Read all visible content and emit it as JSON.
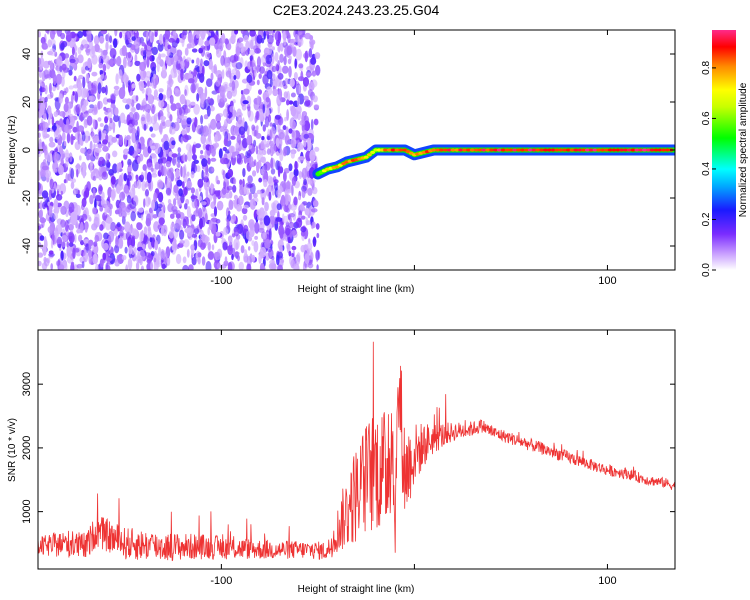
{
  "title": "C2E3.2024.243.23.25.G04",
  "chart_data": [
    {
      "type": "heatmap",
      "xlabel": "Height of straight line (km)",
      "ylabel": "Frequency (Hz)",
      "xlim": [
        -195,
        135
      ],
      "ylim": [
        -50,
        50
      ],
      "xticks": [
        -100,
        0,
        100
      ],
      "xtick_labels": [
        "-100",
        "",
        "100"
      ],
      "yticks": [
        -40,
        -20,
        0,
        20,
        40
      ],
      "colorbar": {
        "label": "Normalized spectral amplitude",
        "range": [
          0,
          0.95
        ],
        "ticks": [
          0.0,
          0.2,
          0.4,
          0.6,
          0.8
        ],
        "tick_labels": [
          "0.0",
          "0.2",
          "0.4",
          "0.6",
          "0.8"
        ]
      },
      "noise_region": {
        "x_range": [
          -195,
          -50
        ],
        "y_range": [
          -50,
          50
        ],
        "amplitude_range": [
          0.05,
          0.2
        ]
      },
      "signal_track": [
        {
          "x": -50,
          "y": -10,
          "amp": 0.55
        },
        {
          "x": -45,
          "y": -8,
          "amp": 0.7
        },
        {
          "x": -40,
          "y": -7,
          "amp": 0.75
        },
        {
          "x": -35,
          "y": -5,
          "amp": 0.8
        },
        {
          "x": -30,
          "y": -4,
          "amp": 0.8
        },
        {
          "x": -25,
          "y": -3,
          "amp": 0.75
        },
        {
          "x": -20,
          "y": 0,
          "amp": 0.6
        },
        {
          "x": -15,
          "y": 0,
          "amp": 0.85
        },
        {
          "x": -5,
          "y": 0,
          "amp": 0.85
        },
        {
          "x": 0,
          "y": -2,
          "amp": 0.8
        },
        {
          "x": 5,
          "y": -1,
          "amp": 0.8
        },
        {
          "x": 10,
          "y": 0,
          "amp": 0.85
        },
        {
          "x": 60,
          "y": 0,
          "amp": 0.9
        },
        {
          "x": 135,
          "y": 0,
          "amp": 0.9
        }
      ]
    },
    {
      "type": "line",
      "xlabel": "Height of straight line (km)",
      "ylabel": "SNR (10 * v/v)",
      "xlim": [
        -195,
        135
      ],
      "ylim": [
        100,
        3850
      ],
      "xticks": [
        -100,
        0,
        100
      ],
      "xtick_labels": [
        "-100",
        "",
        "100"
      ],
      "yticks": [
        1000,
        2000,
        3000
      ],
      "color": "#ee3333",
      "series": [
        {
          "x": [
            -195,
            -180,
            -170,
            -165,
            -150,
            -130,
            -110,
            -90,
            -70,
            -55,
            -45,
            -40,
            -35,
            -30,
            -25,
            -20,
            -15,
            -12,
            -10,
            -8,
            -5,
            0,
            5,
            10,
            20,
            30,
            35,
            40,
            50,
            60,
            70,
            80,
            90,
            100,
            110,
            120,
            130,
            135
          ],
          "y": [
            450,
            500,
            450,
            700,
            500,
            450,
            450,
            420,
            400,
            400,
            380,
            700,
            1000,
            1300,
            1500,
            1700,
            1600,
            2400,
            900,
            3000,
            1600,
            1900,
            2050,
            2150,
            2250,
            2300,
            2350,
            2250,
            2150,
            2050,
            1950,
            1850,
            1750,
            1650,
            1600,
            1500,
            1450,
            1400
          ],
          "noise": [
            150,
            220,
            220,
            260,
            260,
            230,
            200,
            170,
            150,
            140,
            150,
            350,
            600,
            800,
            900,
            1000,
            1000,
            1500,
            600,
            1000,
            800,
            500,
            350,
            250,
            150,
            120,
            110,
            100,
            100,
            100,
            100,
            100,
            90,
            90,
            90,
            80,
            80,
            80
          ]
        }
      ]
    }
  ]
}
